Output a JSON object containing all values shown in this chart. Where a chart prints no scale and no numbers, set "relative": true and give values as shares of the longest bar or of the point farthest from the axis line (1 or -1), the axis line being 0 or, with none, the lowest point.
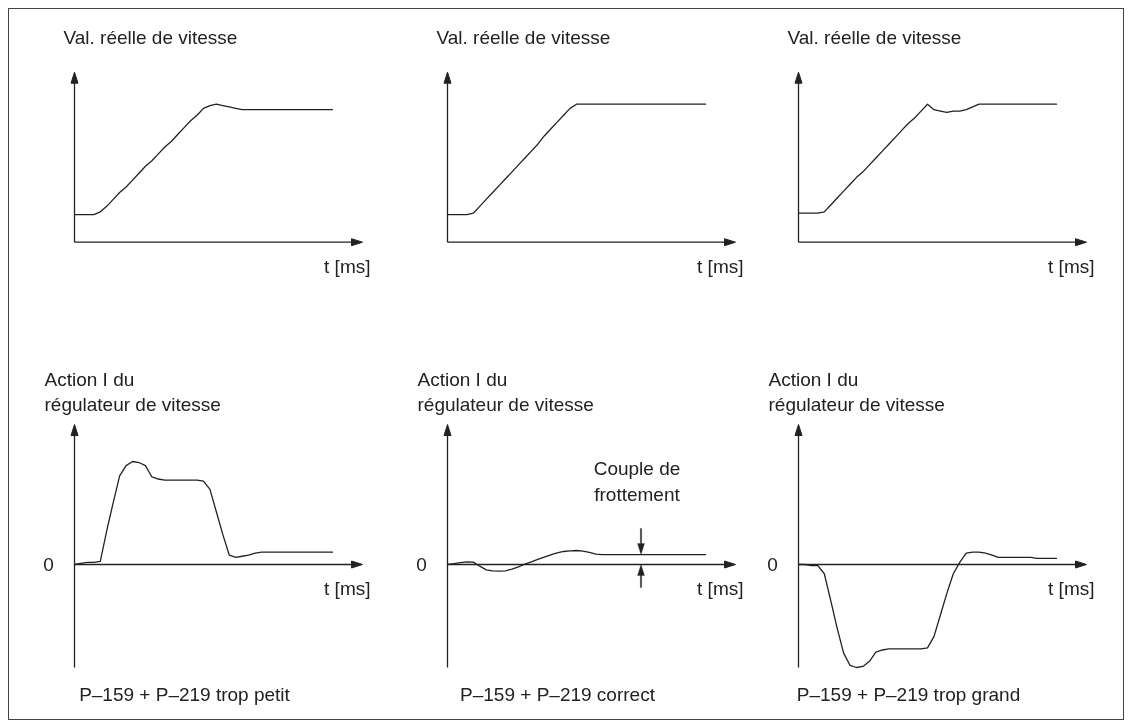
{
  "chart_data": [
    {
      "type": "line",
      "relative": true,
      "ylabel": "Val. réelle de vitesse",
      "xlabel": "t [ms]",
      "color": "#222222",
      "categories": [
        null,
        null,
        null,
        null,
        null,
        null,
        null,
        null,
        null,
        null,
        null,
        null,
        null,
        null,
        null,
        null,
        null,
        null,
        null,
        null,
        null,
        null,
        null,
        null,
        null,
        null,
        null,
        null,
        null,
        null,
        null,
        null,
        null,
        null,
        null,
        null,
        null,
        null,
        null,
        null,
        null
      ],
      "values": [
        0.2,
        0.2,
        0.2,
        0.2,
        0.22,
        0.26,
        0.31,
        0.36,
        0.4,
        0.45,
        0.5,
        0.55,
        0.59,
        0.64,
        0.69,
        0.73,
        0.78,
        0.83,
        0.88,
        0.92,
        0.97,
        0.99,
        1,
        0.99,
        0.98,
        0.97,
        0.96,
        0.96,
        0.96,
        0.96,
        0.96,
        0.96,
        0.96,
        0.96,
        0.96,
        0.96,
        0.96,
        0.96,
        0.96,
        0.96,
        0.96
      ]
    },
    {
      "type": "line",
      "relative": true,
      "ylabel": "Val. réelle de vitesse",
      "xlabel": "t [ms]",
      "color": "#222222",
      "categories": [
        null,
        null,
        null,
        null,
        null,
        null,
        null,
        null,
        null,
        null,
        null,
        null,
        null,
        null,
        null,
        null,
        null,
        null,
        null,
        null,
        null,
        null,
        null,
        null,
        null,
        null,
        null,
        null,
        null,
        null,
        null,
        null,
        null,
        null,
        null,
        null,
        null,
        null,
        null,
        null,
        null
      ],
      "values": [
        0.2,
        0.2,
        0.2,
        0.2,
        0.21,
        0.26,
        0.31,
        0.36,
        0.41,
        0.46,
        0.51,
        0.56,
        0.61,
        0.66,
        0.71,
        0.77,
        0.82,
        0.87,
        0.92,
        0.97,
        1,
        1,
        1,
        1,
        1,
        1,
        1,
        1,
        1,
        1,
        1,
        1,
        1,
        1,
        1,
        1,
        1,
        1,
        1,
        1,
        1
      ]
    },
    {
      "type": "line",
      "relative": true,
      "ylabel": "Val. réelle de vitesse",
      "xlabel": "t [ms]",
      "color": "#222222",
      "categories": [
        null,
        null,
        null,
        null,
        null,
        null,
        null,
        null,
        null,
        null,
        null,
        null,
        null,
        null,
        null,
        null,
        null,
        null,
        null,
        null,
        null,
        null,
        null,
        null,
        null,
        null,
        null,
        null,
        null,
        null,
        null,
        null,
        null,
        null,
        null,
        null,
        null,
        null,
        null,
        null,
        null
      ],
      "values": [
        0.21,
        0.21,
        0.21,
        0.21,
        0.22,
        0.27,
        0.32,
        0.37,
        0.42,
        0.47,
        0.51,
        0.56,
        0.61,
        0.66,
        0.71,
        0.76,
        0.81,
        0.86,
        0.9,
        0.95,
        1,
        0.96,
        0.95,
        0.94,
        0.95,
        0.95,
        0.96,
        0.98,
        1,
        1,
        1,
        1,
        1,
        1,
        1,
        1,
        1,
        1,
        1,
        1,
        1
      ]
    },
    {
      "type": "line",
      "relative": true,
      "title": "P–159 + P–219 trop petit",
      "ylabel": "Action I du\nrégulateur de vitesse",
      "xlabel": "t [ms]",
      "color": "#222222",
      "annotations": [
        "0"
      ],
      "categories": [
        null,
        null,
        null,
        null,
        null,
        null,
        null,
        null,
        null,
        null,
        null,
        null,
        null,
        null,
        null,
        null,
        null,
        null,
        null,
        null,
        null,
        null,
        null,
        null,
        null,
        null,
        null,
        null,
        null,
        null,
        null,
        null,
        null,
        null,
        null,
        null,
        null,
        null,
        null,
        null,
        null
      ],
      "values": [
        0,
        0.01,
        0.02,
        0.02,
        0.03,
        0.33,
        0.6,
        0.86,
        0.96,
        1,
        0.99,
        0.96,
        0.85,
        0.83,
        0.82,
        0.82,
        0.82,
        0.82,
        0.82,
        0.82,
        0.81,
        0.73,
        0.51,
        0.29,
        0.09,
        0.07,
        0.08,
        0.09,
        0.11,
        0.12,
        0.12,
        0.12,
        0.12,
        0.12,
        0.12,
        0.12,
        0.12,
        0.12,
        0.12,
        0.12,
        0.12
      ]
    },
    {
      "type": "line",
      "relative": true,
      "title": "P–159 + P–219 correct",
      "ylabel": "Action I du\nrégulateur de vitesse",
      "xlabel": "t [ms]",
      "color": "#222222",
      "annotations": [
        "0",
        {
          "text": "Couple de\nfrottement",
          "y": 0.71
        }
      ],
      "categories": [
        null,
        null,
        null,
        null,
        null,
        null,
        null,
        null,
        null,
        null,
        null,
        null,
        null,
        null,
        null,
        null,
        null,
        null,
        null,
        null,
        null,
        null,
        null,
        null,
        null,
        null,
        null,
        null,
        null,
        null,
        null,
        null,
        null,
        null,
        null,
        null,
        null,
        null,
        null,
        null,
        null
      ],
      "values": [
        0,
        0.07,
        0.14,
        0.19,
        0.17,
        -0.12,
        -0.38,
        -0.45,
        -0.48,
        -0.45,
        -0.33,
        -0.17,
        0.02,
        0.19,
        0.36,
        0.52,
        0.69,
        0.83,
        0.93,
        0.98,
        1,
        0.95,
        0.86,
        0.74,
        0.71,
        0.71,
        0.71,
        0.71,
        0.71,
        0.71,
        0.71,
        0.71,
        0.71,
        0.71,
        0.71,
        0.71,
        0.71,
        0.71,
        0.71,
        0.71,
        0.71
      ]
    },
    {
      "type": "line",
      "relative": true,
      "title": "P–159 + P–219 trop grand",
      "ylabel": "Action I du\nrégulateur de vitesse",
      "xlabel": "t [ms]",
      "color": "#222222",
      "annotations": [
        "0"
      ],
      "categories": [
        null,
        null,
        null,
        null,
        null,
        null,
        null,
        null,
        null,
        null,
        null,
        null,
        null,
        null,
        null,
        null,
        null,
        null,
        null,
        null,
        null,
        null,
        null,
        null,
        null,
        null,
        null,
        null,
        null,
        null,
        null,
        null,
        null,
        null,
        null,
        null,
        null,
        null,
        null,
        null,
        null
      ],
      "values": [
        0,
        0,
        -0.01,
        -0.01,
        -0.09,
        -0.35,
        -0.62,
        -0.86,
        -0.98,
        -1,
        -0.99,
        -0.94,
        -0.85,
        -0.83,
        -0.82,
        -0.82,
        -0.82,
        -0.82,
        -0.82,
        -0.82,
        -0.81,
        -0.7,
        -0.49,
        -0.28,
        -0.09,
        0.02,
        0.11,
        0.12,
        0.12,
        0.11,
        0.09,
        0.07,
        0.07,
        0.07,
        0.07,
        0.07,
        0.07,
        0.06,
        0.06,
        0.06,
        0.06
      ]
    }
  ]
}
